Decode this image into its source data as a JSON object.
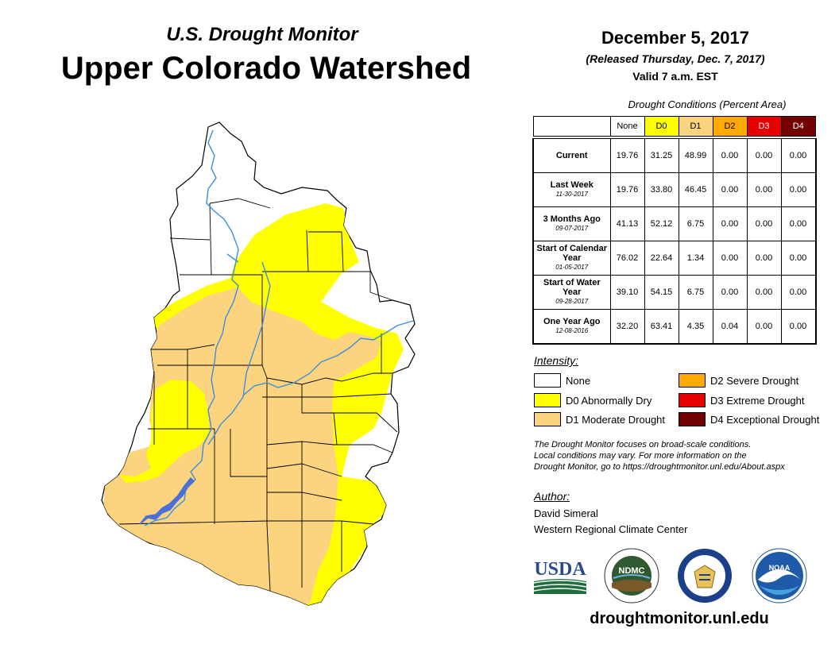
{
  "header": {
    "subtitle": "U.S. Drought Monitor",
    "title": "Upper Colorado Watershed",
    "date": "December 5, 2017",
    "released": "(Released Thursday, Dec. 7, 2017)",
    "valid": "Valid 7 a.m. EST"
  },
  "table": {
    "caption": "Drought Conditions (Percent Area)",
    "columns": [
      "None",
      "D0",
      "D1",
      "D2",
      "D3",
      "D4"
    ],
    "column_colors": [
      "#ffffff",
      "#ffff00",
      "#fcd37f",
      "#ffaa00",
      "#e60000",
      "#730000"
    ],
    "rows": [
      {
        "label": "Current",
        "sublabel": "",
        "values": [
          "19.76",
          "31.25",
          "48.99",
          "0.00",
          "0.00",
          "0.00"
        ]
      },
      {
        "label": "Last Week",
        "sublabel": "11-30-2017",
        "values": [
          "19.76",
          "33.80",
          "46.45",
          "0.00",
          "0.00",
          "0.00"
        ]
      },
      {
        "label": "3 Months Ago",
        "sublabel": "09-07-2017",
        "values": [
          "41.13",
          "52.12",
          "6.75",
          "0.00",
          "0.00",
          "0.00"
        ]
      },
      {
        "label": "Start of Calendar Year",
        "sublabel": "01-05-2017",
        "values": [
          "76.02",
          "22.64",
          "1.34",
          "0.00",
          "0.00",
          "0.00"
        ]
      },
      {
        "label": "Start of Water Year",
        "sublabel": "09-28-2017",
        "values": [
          "39.10",
          "54.15",
          "6.75",
          "0.00",
          "0.00",
          "0.00"
        ]
      },
      {
        "label": "One Year Ago",
        "sublabel": "12-08-2016",
        "values": [
          "32.20",
          "63.41",
          "4.35",
          "0.04",
          "0.00",
          "0.00"
        ]
      }
    ]
  },
  "legend": {
    "title": "Intensity:",
    "items": [
      {
        "label": "None",
        "color": "#ffffff"
      },
      {
        "label": "D0 Abnormally Dry",
        "color": "#ffff00"
      },
      {
        "label": "D1 Moderate Drought",
        "color": "#fcd37f"
      },
      {
        "label": "D2 Severe Drought",
        "color": "#ffaa00"
      },
      {
        "label": "D3 Extreme Drought",
        "color": "#e60000"
      },
      {
        "label": "D4 Exceptional Drought",
        "color": "#730000"
      }
    ]
  },
  "note": {
    "line1": "The Drought Monitor focuses on broad-scale conditions.",
    "line2": "Local conditions may vary. For more information on the",
    "line3": "Drought Monitor, go to https://droughtmonitor.unl.edu/About.aspx"
  },
  "author": {
    "title": "Author:",
    "name": "David Simeral",
    "org": "Western Regional Climate Center"
  },
  "logos": {
    "usda": "USDA",
    "ndmc": "NDMC",
    "noaa": "NOAA"
  },
  "website": "droughtmonitor.unl.edu",
  "map_colors": {
    "none": "#ffffff",
    "d0": "#ffff00",
    "d1": "#fcd37f",
    "river": "#3d8fd9",
    "lake": "#4a6fd6"
  }
}
